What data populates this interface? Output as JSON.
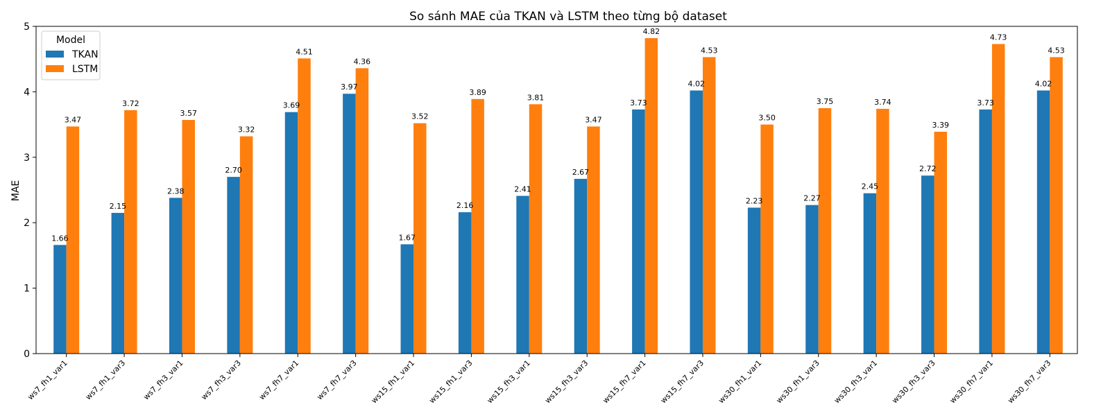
{
  "chart_data": {
    "type": "bar",
    "title": "So sánh MAE của TKAN và LSTM theo từng bộ dataset",
    "xlabel": "",
    "ylabel": "MAE",
    "ylim": [
      0,
      5
    ],
    "yticks": [
      "0",
      "1",
      "2",
      "3",
      "4",
      "5"
    ],
    "grid": false,
    "legend": {
      "title": "Model",
      "placement": "top-left"
    },
    "categories": [
      "ws7_fh1_var1",
      "ws7_fh1_var3",
      "ws7_fh3_var1",
      "ws7_fh3_var3",
      "ws7_fh7_var1",
      "ws7_fh7_var3",
      "ws15_fh1_var1",
      "ws15_fh1_var3",
      "ws15_fh3_var1",
      "ws15_fh3_var3",
      "ws15_fh7_var1",
      "ws15_fh7_var3",
      "ws30_fh1_var1",
      "ws30_fh1_var3",
      "ws30_fh3_var1",
      "ws30_fh3_var3",
      "ws30_fh7_var1",
      "ws30_fh7_var3"
    ],
    "series": [
      {
        "name": "TKAN",
        "color": "#1f77b4",
        "values": [
          1.66,
          2.15,
          2.38,
          2.7,
          3.69,
          3.97,
          1.67,
          2.16,
          2.41,
          2.67,
          3.73,
          4.02,
          2.23,
          2.27,
          2.45,
          2.72,
          3.73,
          4.02
        ]
      },
      {
        "name": "LSTM",
        "color": "#ff7f0e",
        "values": [
          3.47,
          3.72,
          3.57,
          3.32,
          4.51,
          4.36,
          3.52,
          3.89,
          3.81,
          3.47,
          4.82,
          4.53,
          3.5,
          3.75,
          3.74,
          3.39,
          4.73,
          4.53
        ]
      }
    ]
  }
}
